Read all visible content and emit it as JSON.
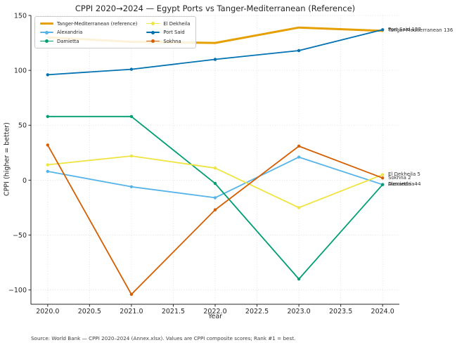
{
  "chart_data": {
    "type": "line",
    "title": "CPPI 2020→2024 — Egypt Ports vs Tanger-Mediterranean (Reference)",
    "xlabel": "Year",
    "ylabel": "CPPI (higher = better)",
    "source": "Source: World Bank — CPPI 2020–2024 (Annex.xlsx). Values are CPPI composite scores; Rank #1 = best.",
    "x": [
      2020,
      2021,
      2022,
      2023,
      2024
    ],
    "xlim": [
      2019.8,
      2024.2
    ],
    "ylim": [
      -113,
      150
    ],
    "xticks": [
      2020.0,
      2020.5,
      2021.0,
      2021.5,
      2022.0,
      2022.5,
      2023.0,
      2023.5,
      2024.0
    ],
    "xtick_labels": [
      "2020.0",
      "2020.5",
      "2021.0",
      "2021.5",
      "2022.0",
      "2022.5",
      "2023.0",
      "2023.5",
      "2024.0"
    ],
    "yticks": [
      150,
      100,
      50,
      0,
      -50,
      -100
    ],
    "ytick_labels": [
      "150",
      "100",
      "50",
      "0",
      "−50",
      "−100"
    ],
    "grid": {
      "visible": true,
      "style": "dotted",
      "color": "#dcdcdc"
    },
    "legend": {
      "position": "upper-left",
      "columns": 2
    },
    "axis_color": "#262626",
    "series": [
      {
        "name": "Tanger-Mediterranean (reference)",
        "color": "#E69F00",
        "line_width": 3,
        "marker": false,
        "values": [
          130,
          126,
          125,
          139,
          136
        ],
        "end_label": "Tanger-Mediterranean 136"
      },
      {
        "name": "Alexandria",
        "color": "#56B4E9",
        "line_width": 1.8,
        "marker": true,
        "values": [
          8,
          -6,
          -16,
          21,
          -4
        ],
        "end_label": "Alexandria -4"
      },
      {
        "name": "Damietta",
        "color": "#009E73",
        "line_width": 1.8,
        "marker": true,
        "values": [
          58,
          58,
          -3,
          -90,
          -4
        ],
        "end_label": "Damietta -4"
      },
      {
        "name": "El Dekheila",
        "color": "#F0E442",
        "line_width": 1.8,
        "marker": true,
        "values": [
          14,
          22,
          11,
          -25,
          5
        ],
        "end_label": "El Dekheila 5"
      },
      {
        "name": "Port Said",
        "color": "#0072B2",
        "line_width": 1.8,
        "marker": true,
        "values": [
          96,
          101,
          110,
          118,
          137
        ],
        "end_label": "Port Said 137"
      },
      {
        "name": "Sokhna",
        "color": "#D55E00",
        "line_width": 1.8,
        "marker": true,
        "values": [
          32,
          -104,
          -27,
          31,
          2
        ],
        "end_label": "Sokhna 2"
      }
    ]
  }
}
